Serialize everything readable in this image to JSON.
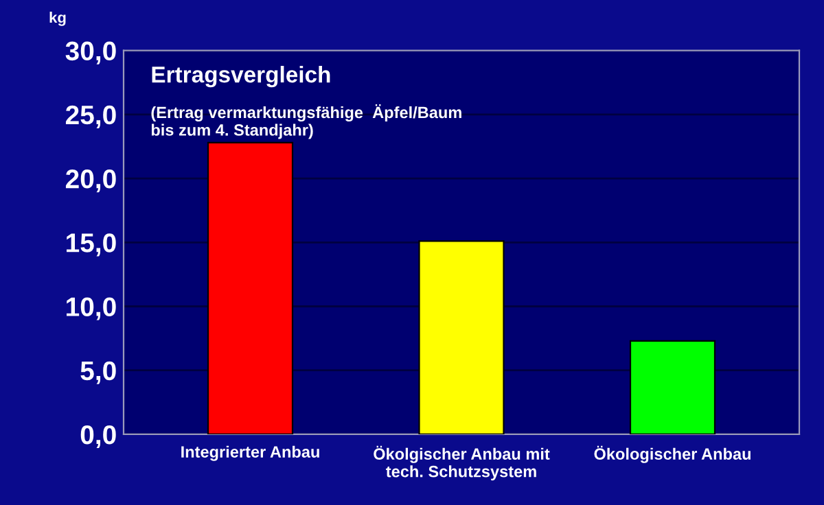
{
  "chart_data": {
    "type": "bar",
    "title": "Ertragsvergleich",
    "subtitle": "(Ertrag vermarktungsfähige  Äpfel/Baum\nbis zum 4. Standjahr)",
    "ylabel": "kg",
    "categories": [
      "Integrierter Anbau",
      "Ökolgischer Anbau mit\ntech. Schutzsystem",
      "Ökologischer Anbau"
    ],
    "values": [
      22.8,
      15.1,
      7.3
    ],
    "colors": [
      "#ff0000",
      "#ffff00",
      "#00ff00"
    ],
    "ylim": [
      0,
      30
    ],
    "yticks": [
      {
        "value": 0,
        "label": "0,0"
      },
      {
        "value": 5,
        "label": "5,0"
      },
      {
        "value": 10,
        "label": "10,0"
      },
      {
        "value": 15,
        "label": "15,0"
      },
      {
        "value": 20,
        "label": "20,0"
      },
      {
        "value": 25,
        "label": "25,0"
      },
      {
        "value": 30,
        "label": "30,0"
      }
    ],
    "grid": "y"
  }
}
